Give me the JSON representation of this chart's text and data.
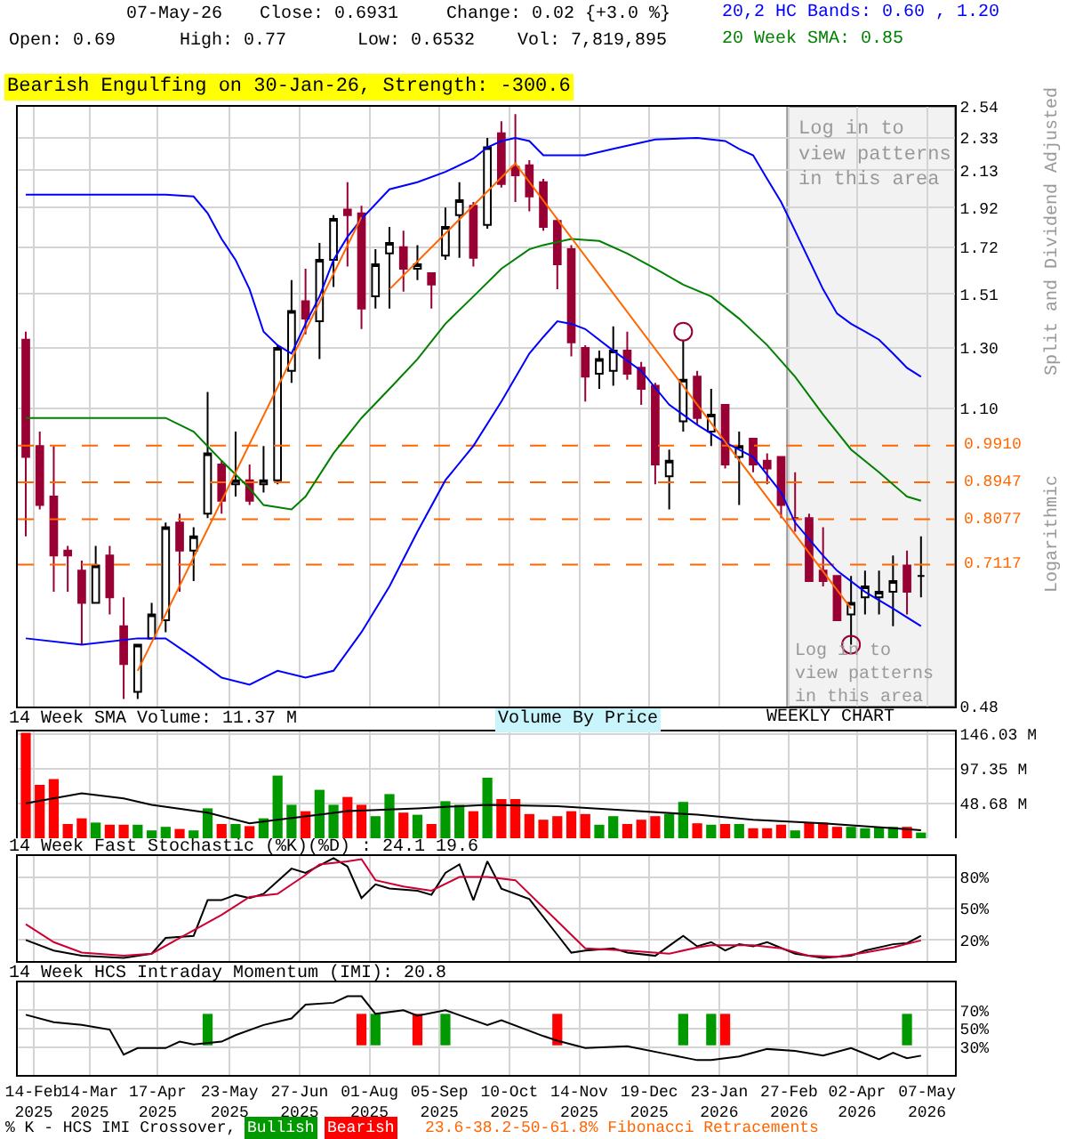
{
  "chart_data": [
    {
      "type": "candlestick",
      "subtitle": "Bearish Engulfing on 30-Jan-26, Strength: -300.6",
      "annotations": [
        "07-May-26",
        "Close: 0.6931",
        "Change: 0.02 {+3.0 %}",
        "Open: 0.69",
        "High: 0.77",
        "Low: 0.6532",
        "Vol: 7,819,895",
        "Split and Dividend Adjusted",
        "Logarithmic",
        "Log in to view patterns in this area"
      ],
      "x": [
        "2025-02-10",
        "2025-02-17",
        "2025-02-24",
        "2025-03-03",
        "2025-03-10",
        "2025-03-17",
        "2025-03-24",
        "2025-03-31",
        "2025-04-07",
        "2025-04-14",
        "2025-04-21",
        "2025-04-28",
        "2025-05-05",
        "2025-05-12",
        "2025-05-19",
        "2025-05-26",
        "2025-06-02",
        "2025-06-09",
        "2025-06-16",
        "2025-06-23",
        "2025-06-30",
        "2025-07-07",
        "2025-07-14",
        "2025-07-21",
        "2025-07-28",
        "2025-08-04",
        "2025-08-11",
        "2025-08-18",
        "2025-08-25",
        "2025-09-01",
        "2025-09-08",
        "2025-09-15",
        "2025-09-22",
        "2025-09-29",
        "2025-10-06",
        "2025-10-13",
        "2025-10-20",
        "2025-10-27",
        "2025-11-03",
        "2025-11-10",
        "2025-11-17",
        "2025-11-24",
        "2025-12-01",
        "2025-12-08",
        "2025-12-15",
        "2025-12-22",
        "2025-12-29",
        "2026-01-05",
        "2026-01-12",
        "2026-01-19",
        "2026-01-26",
        "2026-02-02",
        "2026-02-09",
        "2026-02-16",
        "2026-02-23",
        "2026-03-02",
        "2026-03-09",
        "2026-03-16",
        "2026-03-23",
        "2026-03-30",
        "2026-04-06",
        "2026-04-13",
        "2026-04-20",
        "2026-04-27",
        "2026-05-04"
      ],
      "ohlc": [
        [
          1.33,
          1.36,
          0.77,
          0.96
        ],
        [
          0.99,
          1.03,
          0.83,
          0.84
        ],
        [
          0.86,
          0.99,
          0.66,
          0.73
        ],
        [
          0.74,
          0.75,
          0.66,
          0.73
        ],
        [
          0.7,
          0.72,
          0.57,
          0.64
        ],
        [
          0.64,
          0.75,
          0.64,
          0.71
        ],
        [
          0.73,
          0.75,
          0.62,
          0.65
        ],
        [
          0.6,
          0.65,
          0.49,
          0.54
        ],
        [
          0.5,
          0.57,
          0.49,
          0.57
        ],
        [
          0.58,
          0.64,
          0.58,
          0.62
        ],
        [
          0.61,
          0.8,
          0.59,
          0.79
        ],
        [
          0.8,
          0.82,
          0.66,
          0.74
        ],
        [
          0.74,
          0.79,
          0.68,
          0.77
        ],
        [
          0.82,
          1.15,
          0.81,
          0.97
        ],
        [
          0.94,
          0.95,
          0.82,
          0.85
        ],
        [
          0.89,
          1.03,
          0.86,
          0.9
        ],
        [
          0.9,
          0.94,
          0.84,
          0.85
        ],
        [
          0.89,
          0.99,
          0.87,
          0.9
        ],
        [
          0.9,
          1.31,
          0.89,
          1.3
        ],
        [
          1.22,
          1.57,
          1.18,
          1.44
        ],
        [
          1.48,
          1.62,
          1.35,
          1.41
        ],
        [
          1.4,
          1.74,
          1.26,
          1.66
        ],
        [
          1.66,
          1.88,
          1.54,
          1.86
        ],
        [
          1.91,
          2.06,
          1.63,
          1.88
        ],
        [
          1.89,
          1.93,
          1.37,
          1.45
        ],
        [
          1.5,
          1.71,
          1.45,
          1.64
        ],
        [
          1.69,
          1.82,
          1.45,
          1.74
        ],
        [
          1.72,
          1.8,
          1.52,
          1.62
        ],
        [
          1.62,
          1.73,
          1.57,
          1.64
        ],
        [
          1.6,
          1.6,
          1.45,
          1.55
        ],
        [
          1.68,
          1.92,
          1.66,
          1.82
        ],
        [
          1.88,
          2.06,
          1.67,
          1.96
        ],
        [
          1.93,
          1.95,
          1.63,
          1.67
        ],
        [
          1.83,
          2.33,
          1.81,
          2.27
        ],
        [
          2.36,
          2.44,
          2.03,
          2.05
        ],
        [
          2.15,
          2.49,
          1.95,
          2.1
        ],
        [
          2.16,
          2.19,
          1.9,
          1.98
        ],
        [
          2.06,
          2.08,
          1.8,
          1.82
        ],
        [
          1.85,
          1.86,
          1.53,
          1.64
        ],
        [
          1.71,
          1.73,
          1.27,
          1.32
        ],
        [
          1.3,
          1.31,
          1.12,
          1.2
        ],
        [
          1.21,
          1.29,
          1.16,
          1.26
        ],
        [
          1.22,
          1.38,
          1.17,
          1.29
        ],
        [
          1.29,
          1.36,
          1.19,
          1.21
        ],
        [
          1.23,
          1.25,
          1.11,
          1.16
        ],
        [
          1.17,
          1.18,
          0.89,
          0.94
        ],
        [
          0.91,
          0.98,
          0.83,
          0.95
        ],
        [
          1.06,
          1.33,
          1.03,
          1.19
        ],
        [
          1.2,
          1.22,
          1.05,
          1.07
        ],
        [
          1.03,
          1.16,
          0.99,
          1.08
        ],
        [
          1.11,
          1.11,
          0.93,
          0.94
        ],
        [
          0.96,
          1.03,
          0.84,
          0.99
        ],
        [
          1.01,
          1.01,
          0.92,
          0.94
        ],
        [
          0.95,
          0.97,
          0.89,
          0.93
        ],
        [
          0.96,
          0.96,
          0.81,
          0.84
        ],
        [
          0.81,
          0.92,
          0.78,
          0.81
        ],
        [
          0.81,
          0.82,
          0.68,
          0.68
        ],
        [
          0.7,
          0.79,
          0.67,
          0.68
        ],
        [
          0.69,
          0.69,
          0.61,
          0.61
        ],
        [
          0.62,
          0.69,
          0.57,
          0.64
        ],
        [
          0.65,
          0.7,
          0.62,
          0.67
        ],
        [
          0.65,
          0.7,
          0.62,
          0.66
        ],
        [
          0.66,
          0.73,
          0.6,
          0.68
        ],
        [
          0.71,
          0.74,
          0.62,
          0.66
        ],
        [
          0.69,
          0.77,
          0.65,
          0.69
        ]
      ],
      "series": [
        {
          "type": "line",
          "name": "20,2 HC Bands: 0.60 , 1.20",
          "color": "#0000ff",
          "x": [
            "2025-02-10",
            "2025-03-10",
            "2025-04-07",
            "2025-04-21",
            "2025-05-05",
            "2025-05-12",
            "2025-05-19",
            "2025-05-26",
            "2025-06-02",
            "2025-06-09",
            "2025-06-16",
            "2025-06-23",
            "2025-06-30",
            "2025-07-07",
            "2025-07-14",
            "2025-07-21",
            "2025-07-28",
            "2025-08-11",
            "2025-08-25",
            "2025-09-08",
            "2025-09-22",
            "2025-09-29",
            "2025-10-06",
            "2025-10-13",
            "2025-10-20",
            "2025-10-27",
            "2025-11-17",
            "2025-12-01",
            "2025-12-15",
            "2025-12-22",
            "2026-01-12",
            "2026-01-26",
            "2026-02-02",
            "2026-02-09",
            "2026-02-16",
            "2026-02-23",
            "2026-03-02",
            "2026-03-09",
            "2026-03-16",
            "2026-03-23",
            "2026-03-30",
            "2026-04-06",
            "2026-04-13",
            "2026-04-20",
            "2026-04-27",
            "2026-05-04"
          ],
          "values": [
            1.99,
            1.99,
            1.99,
            1.99,
            1.98,
            1.89,
            1.76,
            1.66,
            1.53,
            1.36,
            1.31,
            1.28,
            1.39,
            1.5,
            1.66,
            1.77,
            1.86,
            2.02,
            2.06,
            2.12,
            2.2,
            2.27,
            2.31,
            2.33,
            2.31,
            2.22,
            2.22,
            2.26,
            2.3,
            2.32,
            2.33,
            2.31,
            2.26,
            2.22,
            2.08,
            1.95,
            1.8,
            1.66,
            1.53,
            1.43,
            1.39,
            1.36,
            1.33,
            1.28,
            1.23,
            1.2
          ]
        },
        {
          "type": "line",
          "color": "#0000ff",
          "x": [
            "2025-02-10",
            "2025-03-10",
            "2025-04-07",
            "2025-04-21",
            "2025-05-05",
            "2025-05-19",
            "2025-06-02",
            "2025-06-16",
            "2025-06-30",
            "2025-07-14",
            "2025-07-28",
            "2025-08-11",
            "2025-08-25",
            "2025-09-08",
            "2025-09-22",
            "2025-10-06",
            "2025-10-20",
            "2025-10-27",
            "2025-11-03",
            "2025-11-10",
            "2025-11-17",
            "2025-12-01",
            "2025-12-15",
            "2025-12-29",
            "2026-01-12",
            "2026-01-26",
            "2026-02-09",
            "2026-02-23",
            "2026-03-02",
            "2026-03-16",
            "2026-03-23",
            "2026-04-06",
            "2026-04-20",
            "2026-05-04"
          ],
          "values": [
            0.58,
            0.57,
            0.58,
            0.58,
            0.55,
            0.52,
            0.51,
            0.53,
            0.52,
            0.53,
            0.59,
            0.67,
            0.78,
            0.9,
            0.99,
            1.12,
            1.28,
            1.34,
            1.4,
            1.39,
            1.37,
            1.29,
            1.22,
            1.11,
            1.05,
            1.0,
            0.96,
            0.87,
            0.8,
            0.73,
            0.7,
            0.66,
            0.63,
            0.6
          ]
        },
        {
          "type": "line",
          "name": "20 Week SMA: 0.85",
          "color": "#008000",
          "x": [
            "2025-02-10",
            "2025-04-07",
            "2025-04-21",
            "2025-05-05",
            "2025-05-19",
            "2025-06-02",
            "2025-06-09",
            "2025-06-23",
            "2025-06-30",
            "2025-07-14",
            "2025-07-28",
            "2025-08-11",
            "2025-08-25",
            "2025-09-08",
            "2025-09-22",
            "2025-10-06",
            "2025-10-20",
            "2025-10-27",
            "2025-11-10",
            "2025-11-24",
            "2025-12-08",
            "2025-12-22",
            "2026-01-05",
            "2026-01-19",
            "2026-02-02",
            "2026-02-16",
            "2026-03-02",
            "2026-03-16",
            "2026-03-30",
            "2026-04-13",
            "2026-04-27",
            "2026-05-04"
          ],
          "values": [
            1.07,
            1.07,
            1.07,
            1.03,
            0.95,
            0.88,
            0.84,
            0.83,
            0.86,
            0.97,
            1.07,
            1.16,
            1.26,
            1.39,
            1.5,
            1.62,
            1.71,
            1.73,
            1.76,
            1.75,
            1.69,
            1.62,
            1.55,
            1.5,
            1.41,
            1.31,
            1.2,
            1.08,
            0.98,
            0.92,
            0.86,
            0.85
          ]
        },
        {
          "type": "line",
          "color": "#ff6600",
          "x": [
            "2025-04-07",
            "2025-07-28",
            "2025-08-04",
            "2025-08-11",
            "2025-10-13",
            "2026-03-30"
          ],
          "values": [
            0.53,
            1.87,
            null,
            1.53,
            2.17,
            0.63
          ]
        },
        {
          "type": "scatter",
          "marker": "circle",
          "color": "#990033",
          "x": [
            "2026-01-05",
            "2026-03-30"
          ],
          "values": [
            1.36,
            0.57
          ]
        }
      ],
      "ref_lines": [
        {
          "axis": "y",
          "value": 0.991,
          "label": "0.9910",
          "color": "#ff6600",
          "line_style": "dashed"
        },
        {
          "axis": "y",
          "value": 0.8947,
          "label": "0.8947",
          "color": "#ff6600",
          "line_style": "dashed"
        },
        {
          "axis": "y",
          "value": 0.8077,
          "label": "0.8077",
          "color": "#ff6600",
          "line_style": "dashed"
        },
        {
          "axis": "y",
          "value": 0.7117,
          "label": "0.7117",
          "color": "#ff6600",
          "line_style": "dashed"
        }
      ],
      "bands": [
        {
          "axis": "x",
          "from": "2026-02-26",
          "to": "2026-05-21",
          "label": "Log in to view patterns in this area",
          "color": "#f2f2f2"
        }
      ],
      "log": true,
      "grid": true,
      "tick_labels": "y",
      "xlim": [
        "2025-02-06",
        "2026-05-21"
      ],
      "xticks": [
        {
          "value": "2025-02-14",
          "label": null
        },
        {
          "value": "2025-03-14",
          "label": null
        },
        {
          "value": "2025-04-17",
          "label": null
        },
        {
          "value": "2025-05-23",
          "label": null
        },
        {
          "value": "2025-06-27",
          "label": null
        },
        {
          "value": "2025-08-01",
          "label": null
        },
        {
          "value": "2025-09-05",
          "label": null
        },
        {
          "value": "2025-10-10",
          "label": null
        },
        {
          "value": "2025-11-14",
          "label": null
        },
        {
          "value": "2025-12-19",
          "label": null
        },
        {
          "value": "2026-01-23",
          "label": null
        },
        {
          "value": "2026-02-27",
          "label": null
        },
        {
          "value": "2026-04-02",
          "label": null
        },
        {
          "value": "2026-05-07",
          "label": null
        }
      ],
      "ylim": [
        0.48,
        2.54
      ],
      "yticks": [
        0.48,
        {
          "value": 1.1,
          "label": "1.10"
        },
        {
          "value": 1.3,
          "label": "1.30"
        },
        1.51,
        1.72,
        1.92,
        2.13,
        2.33,
        2.54
      ]
    },
    {
      "type": "bar",
      "title": "14 Week SMA Volume: 11.37 M",
      "annotations": [
        "Volume By Price",
        "WEEKLY CHART"
      ],
      "x": [
        "2025-02-10",
        "2025-02-17",
        "2025-02-24",
        "2025-03-03",
        "2025-03-10",
        "2025-03-17",
        "2025-03-24",
        "2025-03-31",
        "2025-04-07",
        "2025-04-14",
        "2025-04-21",
        "2025-04-28",
        "2025-05-05",
        "2025-05-12",
        "2025-05-19",
        "2025-05-26",
        "2025-06-02",
        "2025-06-09",
        "2025-06-16",
        "2025-06-23",
        "2025-06-30",
        "2025-07-07",
        "2025-07-14",
        "2025-07-21",
        "2025-07-28",
        "2025-08-04",
        "2025-08-11",
        "2025-08-18",
        "2025-08-25",
        "2025-09-01",
        "2025-09-08",
        "2025-09-15",
        "2025-09-22",
        "2025-09-29",
        "2025-10-06",
        "2025-10-13",
        "2025-10-20",
        "2025-10-27",
        "2025-11-03",
        "2025-11-10",
        "2025-11-17",
        "2025-11-24",
        "2025-12-01",
        "2025-12-08",
        "2025-12-15",
        "2025-12-22",
        "2025-12-29",
        "2026-01-05",
        "2026-01-12",
        "2026-01-19",
        "2026-01-26",
        "2026-02-02",
        "2026-02-09",
        "2026-02-16",
        "2026-02-23",
        "2026-03-02",
        "2026-03-09",
        "2026-03-16",
        "2026-03-23",
        "2026-03-30",
        "2026-04-06",
        "2026-04-13",
        "2026-04-20",
        "2026-04-27",
        "2026-05-04"
      ],
      "series": [
        {
          "values": [
            148,
            75,
            83,
            20,
            28,
            22,
            19,
            19,
            19,
            11,
            16,
            13,
            11,
            42,
            20,
            20,
            17,
            28,
            88,
            47,
            38,
            68,
            47,
            58,
            47,
            31,
            62,
            36,
            33,
            20,
            52,
            47,
            38,
            85,
            55,
            55,
            34,
            26,
            31,
            38,
            34,
            19,
            31,
            20,
            26,
            31,
            34,
            51,
            21,
            19,
            20,
            20,
            14,
            14,
            19,
            11,
            22,
            22,
            16,
            16,
            14,
            16,
            16,
            16,
            8
          ],
          "colors": [
            "#ff0000",
            "#ff0000",
            "#ff0000",
            "#ff0000",
            "#ff0000",
            "#009900",
            "#ff0000",
            "#ff0000",
            "#009900",
            "#009900",
            "#009900",
            "#ff0000",
            "#009900",
            "#009900",
            "#ff0000",
            "#009900",
            "#ff0000",
            "#009900",
            "#009900",
            "#009900",
            "#ff0000",
            "#009900",
            "#009900",
            "#ff0000",
            "#ff0000",
            "#009900",
            "#009900",
            "#ff0000",
            "#009900",
            "#ff0000",
            "#009900",
            "#009900",
            "#ff0000",
            "#009900",
            "#ff0000",
            "#ff0000",
            "#ff0000",
            "#ff0000",
            "#ff0000",
            "#ff0000",
            "#ff0000",
            "#009900",
            "#009900",
            "#ff0000",
            "#ff0000",
            "#ff0000",
            "#009900",
            "#009900",
            "#ff0000",
            "#009900",
            "#ff0000",
            "#009900",
            "#ff0000",
            "#ff0000",
            "#ff0000",
            "#009900",
            "#ff0000",
            "#ff0000",
            "#ff0000",
            "#009900",
            "#009900",
            "#009900",
            "#009900",
            "#ff0000",
            "#009900"
          ]
        },
        {
          "type": "line",
          "color": "#000000",
          "x": [
            "2025-02-10",
            "2025-03-10",
            "2025-03-31",
            "2025-04-14",
            "2025-05-12",
            "2025-06-02",
            "2025-06-16",
            "2025-07-07",
            "2025-07-21",
            "2025-08-25",
            "2025-09-29",
            "2025-11-03",
            "2025-12-08",
            "2026-01-12",
            "2026-02-09",
            "2026-03-16",
            "2026-04-20",
            "2026-05-04"
          ],
          "values": [
            49,
            63,
            56,
            47,
            36,
            21,
            26,
            33,
            38,
            42,
            47,
            45,
            39,
            33,
            26,
            21,
            14,
            11.37
          ]
        }
      ],
      "grid": true,
      "tick_labels": "y",
      "xlim": [
        "2025-02-06",
        "2026-05-21"
      ],
      "xticks": [
        {
          "value": "2025-02-14",
          "label": null
        },
        {
          "value": "2025-03-14",
          "label": null
        },
        {
          "value": "2025-04-17",
          "label": null
        },
        {
          "value": "2025-05-23",
          "label": null
        },
        {
          "value": "2025-06-27",
          "label": null
        },
        {
          "value": "2025-08-01",
          "label": null
        },
        {
          "value": "2025-09-05",
          "label": null
        },
        {
          "value": "2025-10-10",
          "label": null
        },
        {
          "value": "2025-11-14",
          "label": null
        },
        {
          "value": "2025-12-19",
          "label": null
        },
        {
          "value": "2026-01-23",
          "label": null
        },
        {
          "value": "2026-02-27",
          "label": null
        },
        {
          "value": "2026-04-02",
          "label": null
        },
        {
          "value": "2026-05-07",
          "label": null
        }
      ],
      "ylim": [
        0,
        150
      ],
      "yticks": [
        {
          "value": 48.68,
          "label": "48.68 M"
        },
        {
          "value": 97.35,
          "label": "97.35 M"
        },
        {
          "value": 146.03,
          "label": "146.03 M"
        }
      ]
    },
    {
      "type": "line",
      "title": "14 Week Fast Stochastic (%K)(%D) : 24.1 19.6",
      "series": [
        {
          "color": "#000000",
          "x": [
            "2025-02-10",
            "2025-02-24",
            "2025-03-10",
            "2025-03-31",
            "2025-04-14",
            "2025-04-21",
            "2025-05-05",
            "2025-05-12",
            "2025-05-19",
            "2025-05-26",
            "2025-06-02",
            "2025-06-09",
            "2025-06-23",
            "2025-06-30",
            "2025-07-14",
            "2025-07-21",
            "2025-07-28",
            "2025-08-04",
            "2025-08-11",
            "2025-08-25",
            "2025-09-01",
            "2025-09-08",
            "2025-09-15",
            "2025-09-22",
            "2025-09-29",
            "2025-10-06",
            "2025-10-20",
            "2025-11-03",
            "2025-11-10",
            "2025-11-17",
            "2025-12-01",
            "2025-12-08",
            "2025-12-22",
            "2026-01-05",
            "2026-01-12",
            "2026-01-19",
            "2026-01-26",
            "2026-02-02",
            "2026-02-09",
            "2026-02-16",
            "2026-03-02",
            "2026-03-16",
            "2026-03-30",
            "2026-04-06",
            "2026-04-20",
            "2026-04-27",
            "2026-05-04"
          ],
          "values": [
            20,
            10,
            5,
            3,
            7,
            22,
            24,
            58,
            58,
            63,
            60,
            64,
            88,
            84,
            98,
            90,
            60,
            73,
            69,
            67,
            63,
            84,
            92,
            58,
            95,
            69,
            59,
            25,
            8,
            10,
            12,
            8,
            5,
            24,
            14,
            18,
            10,
            16,
            14,
            18,
            7,
            3,
            5,
            10,
            16,
            17,
            24.1
          ]
        },
        {
          "color": "#cc0033",
          "x": [
            "2025-02-10",
            "2025-02-24",
            "2025-03-10",
            "2025-03-31",
            "2025-04-14",
            "2025-04-28",
            "2025-05-19",
            "2025-06-02",
            "2025-06-16",
            "2025-06-30",
            "2025-07-07",
            "2025-07-21",
            "2025-07-28",
            "2025-08-04",
            "2025-08-18",
            "2025-09-01",
            "2025-09-15",
            "2025-09-29",
            "2025-10-13",
            "2025-10-27",
            "2025-11-10",
            "2025-11-17",
            "2025-12-08",
            "2025-12-29",
            "2026-01-12",
            "2026-01-19",
            "2026-02-09",
            "2026-02-23",
            "2026-03-09",
            "2026-03-23",
            "2026-04-06",
            "2026-04-20",
            "2026-05-04"
          ],
          "values": [
            35,
            18,
            8,
            5,
            7,
            22,
            44,
            61,
            64,
            82,
            92,
            95,
            97,
            77,
            71,
            67,
            80,
            80,
            77,
            51,
            25,
            12,
            10,
            7,
            13,
            15,
            15,
            12,
            5,
            4,
            8,
            13,
            19.6
          ]
        }
      ],
      "grid": true,
      "tick_labels": "y",
      "xlim": [
        "2025-02-06",
        "2026-05-21"
      ],
      "xticks": [
        {
          "value": "2025-02-14",
          "label": null
        },
        {
          "value": "2025-03-14",
          "label": null
        },
        {
          "value": "2025-04-17",
          "label": null
        },
        {
          "value": "2025-05-23",
          "label": null
        },
        {
          "value": "2025-06-27",
          "label": null
        },
        {
          "value": "2025-08-01",
          "label": null
        },
        {
          "value": "2025-09-05",
          "label": null
        },
        {
          "value": "2025-10-10",
          "label": null
        },
        {
          "value": "2025-11-14",
          "label": null
        },
        {
          "value": "2025-12-19",
          "label": null
        },
        {
          "value": "2026-01-23",
          "label": null
        },
        {
          "value": "2026-02-27",
          "label": null
        },
        {
          "value": "2026-04-02",
          "label": null
        },
        {
          "value": "2026-05-07",
          "label": null
        }
      ],
      "ylim": [
        0,
        100
      ],
      "yticks": [
        {
          "value": 20,
          "label": "20%"
        },
        {
          "value": 50,
          "label": "50%"
        },
        {
          "value": 80,
          "label": "80%"
        }
      ]
    },
    {
      "type": "line",
      "title": "14 Week HCS Intraday Momentum (IMI): 20.8",
      "annotations": [
        "% K - HCS IMI Crossover,",
        "23.6-38.2-50-61.8% Fibonacci Retracements"
      ],
      "series": [
        {
          "color": "#000000",
          "x": [
            "2025-02-10",
            "2025-02-24",
            "2025-03-10",
            "2025-03-24",
            "2025-03-31",
            "2025-04-07",
            "2025-04-21",
            "2025-04-28",
            "2025-05-05",
            "2025-05-19",
            "2025-05-26",
            "2025-06-09",
            "2025-06-23",
            "2025-06-30",
            "2025-07-14",
            "2025-07-21",
            "2025-07-28",
            "2025-08-04",
            "2025-08-18",
            "2025-08-25",
            "2025-09-08",
            "2025-09-29",
            "2025-10-06",
            "2025-10-27",
            "2025-11-03",
            "2025-11-17",
            "2025-12-08",
            "2025-12-29",
            "2026-01-12",
            "2026-01-19",
            "2026-02-02",
            "2026-02-16",
            "2026-03-02",
            "2026-03-16",
            "2026-03-30",
            "2026-04-13",
            "2026-04-20",
            "2026-04-27",
            "2026-05-04"
          ],
          "values": [
            65,
            57,
            54,
            49,
            22,
            29,
            29,
            36,
            33,
            36,
            43,
            54,
            61,
            76,
            78,
            85,
            85,
            66,
            70,
            64,
            70,
            54,
            59,
            42,
            37,
            29,
            31,
            22,
            16,
            16,
            20,
            28,
            26,
            21,
            29,
            17,
            24,
            18,
            20.8
          ]
        },
        {
          "type": "bar",
          "name": "Bullish",
          "color": "#009900",
          "x": [
            "2025-05-12",
            "2025-08-04",
            "2025-09-08",
            "2026-01-05",
            "2026-01-19",
            "2026-04-27"
          ],
          "base": [
            32,
            32,
            32,
            32,
            32,
            32
          ],
          "values": [
            34,
            34,
            34,
            34,
            34,
            34
          ]
        },
        {
          "type": "bar",
          "name": "Bearish",
          "color": "#ff0000",
          "x": [
            "2025-07-28",
            "2025-08-25",
            "2025-11-03",
            "2026-01-26"
          ],
          "base": [
            32,
            32,
            32,
            32
          ],
          "values": [
            34,
            34,
            34,
            34
          ]
        }
      ],
      "grid": true,
      "xlim": [
        "2025-02-06",
        "2026-05-21"
      ],
      "xticks": [
        {
          "value": "2025-02-14",
          "label": "14-Feb 2025"
        },
        {
          "value": "2025-03-14",
          "label": "14-Mar 2025"
        },
        {
          "value": "2025-04-17",
          "label": "17-Apr 2025"
        },
        {
          "value": "2025-05-23",
          "label": "23-May 2025"
        },
        {
          "value": "2025-06-27",
          "label": "27-Jun 2025"
        },
        {
          "value": "2025-08-01",
          "label": "01-Aug 2025"
        },
        {
          "value": "2025-09-05",
          "label": "05-Sep 2025"
        },
        {
          "value": "2025-10-10",
          "label": "10-Oct 2025"
        },
        {
          "value": "2025-11-14",
          "label": "14-Nov 2025"
        },
        {
          "value": "2025-12-19",
          "label": "19-Dec 2025"
        },
        {
          "value": "2026-01-23",
          "label": "23-Jan 2026"
        },
        {
          "value": "2026-02-27",
          "label": "27-Feb 2026"
        },
        {
          "value": "2026-04-02",
          "label": "02-Apr 2026"
        },
        {
          "value": "2026-05-07",
          "label": "07-May 2026"
        }
      ],
      "ylim": [
        0,
        100
      ],
      "yticks": [
        {
          "value": 30,
          "label": "30%"
        },
        {
          "value": 50,
          "label": "50%"
        },
        {
          "value": 70,
          "label": "70%"
        }
      ]
    }
  ]
}
